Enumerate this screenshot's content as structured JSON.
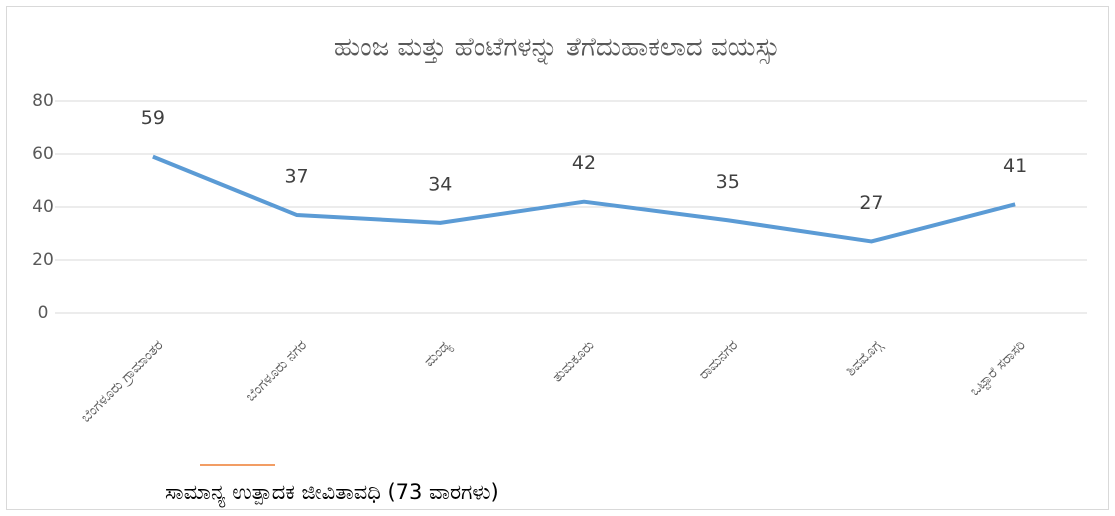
{
  "chart_data": {
    "type": "line",
    "title": "ಹುಂಜ ಮತ್ತು ಹೆಂಟೆಗಳನ್ನು ತೆಗೆದುಹಾಕಲಾದ ವಯಸ್ಸು",
    "categories": [
      "ಬೆಂಗಳೂರು ಗ್ರಾಮಾಂತರ",
      "ಬೆಂಗಳೂರು ನಗರ",
      "ಮಂಡ್ಯ",
      "ತುಮಕೂರು",
      "ರಾಮನಗರ",
      "ಶಿವಮೊಗ್ಗ",
      "ಒಟ್ಟಾರೆ ಸರಾಸರಿ"
    ],
    "series": [
      {
        "color": "#5b9bd5",
        "values": [
          59,
          37,
          34,
          42,
          35,
          27,
          41
        ]
      }
    ],
    "legend": [
      {
        "label": "ಸಾಮಾನ್ಯ ಉತ್ಪಾದಕ ಜೀವಿತಾವಧಿ (73 ವಾರಗಳು)",
        "color": "#ed7d31"
      }
    ],
    "ylim": [
      0,
      80
    ],
    "yticks": [
      0,
      20,
      40,
      60,
      80
    ],
    "grid": true
  }
}
